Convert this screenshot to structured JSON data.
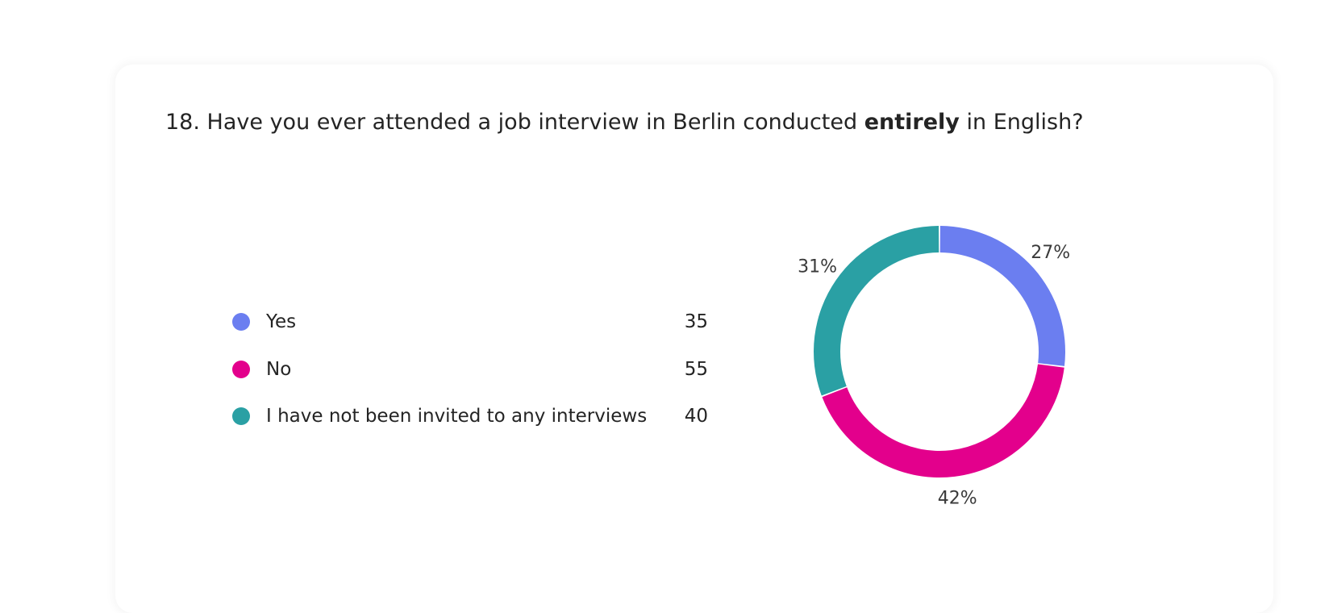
{
  "question": {
    "number": "18.",
    "text_before": "Have you ever attended a job interview in Berlin conducted",
    "text_bold": "entirely",
    "text_after": "in English?"
  },
  "colors": {
    "yes": "#6b7ef0",
    "no": "#e3008c",
    "not_invited": "#2aa0a4"
  },
  "chart_data": {
    "type": "pie",
    "title": "18. Have you ever attended a job interview in Berlin conducted entirely in English?",
    "categories": [
      "Yes",
      "No",
      "I have not been invited to any interviews"
    ],
    "values": [
      35,
      55,
      40
    ],
    "percent_labels": [
      "27%",
      "42%",
      "31%"
    ],
    "colors": [
      "#6b7ef0",
      "#e3008c",
      "#2aa0a4"
    ],
    "donut": true,
    "legend_position": "left"
  }
}
